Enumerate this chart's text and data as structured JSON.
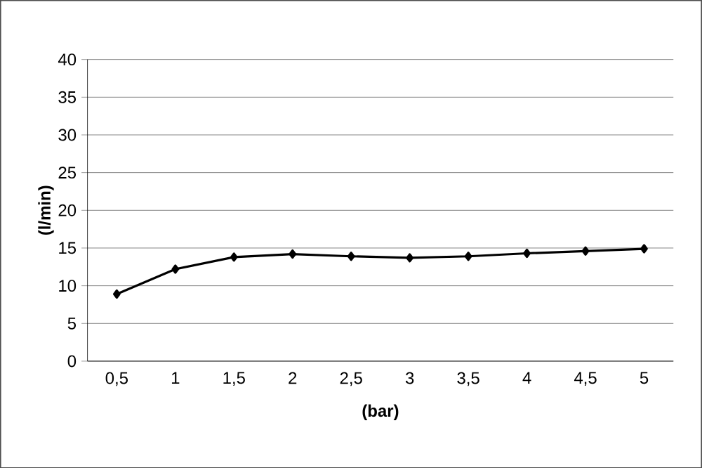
{
  "chart_data": {
    "type": "line",
    "xlabel": "(bar)",
    "ylabel": "(l/min)",
    "categories": [
      "0,5",
      "1",
      "1,5",
      "2",
      "2,5",
      "3",
      "3,5",
      "4",
      "4,5",
      "5"
    ],
    "series": [
      {
        "color": "#000000",
        "values": [
          8.9,
          12.2,
          13.8,
          14.2,
          13.9,
          13.7,
          13.9,
          14.3,
          14.6,
          14.9
        ]
      }
    ],
    "ylim": [
      0,
      40
    ],
    "yticks": [
      0,
      5,
      10,
      15,
      20,
      25,
      30,
      35,
      40
    ],
    "grid": "y",
    "marker": "diamond",
    "line_style": "solid"
  }
}
